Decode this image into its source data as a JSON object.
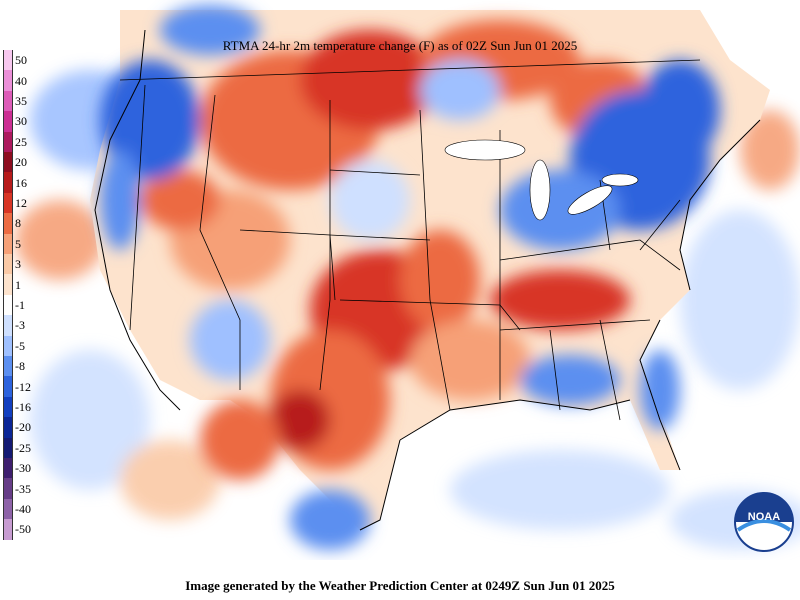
{
  "map": {
    "title": "RTMA 24-hr 2m temperature change (F) as of 02Z Sun Jun 01 2025",
    "footer": "Image generated by the Weather Prediction Center at 0249Z Sun Jun 01 2025",
    "logo_text": "NOAA"
  },
  "legend": {
    "labels": [
      "50",
      "40",
      "35",
      "30",
      "25",
      "20",
      "16",
      "12",
      "8",
      "5",
      "3",
      "1",
      "-1",
      "-3",
      "-5",
      "-8",
      "-12",
      "-16",
      "-20",
      "-25",
      "-30",
      "-35",
      "-40",
      "-50"
    ],
    "colors": [
      "#f7c8ef",
      "#eb8fd8",
      "#dd5cb8",
      "#cc2f93",
      "#ad1a5e",
      "#8e0e20",
      "#b71b1b",
      "#d83525",
      "#ec6b43",
      "#f6a077",
      "#fac9a6",
      "#fde3cd",
      "#ffffff",
      "#cfe0ff",
      "#9fc0ff",
      "#5c8ff0",
      "#2d63dd",
      "#123fbf",
      "#0b2696",
      "#141a73",
      "#3e1f6e",
      "#663d87",
      "#8e63a8",
      "#c79cd1"
    ]
  },
  "colors": {
    "warm_strong": "#d83525",
    "warm_mid": "#ec6b43",
    "warm_light": "#f6a077",
    "cool_light": "#cfe0ff",
    "cool_mid": "#5c8ff0",
    "cool_strong": "#2d63dd",
    "neutral": "#ffffff"
  }
}
